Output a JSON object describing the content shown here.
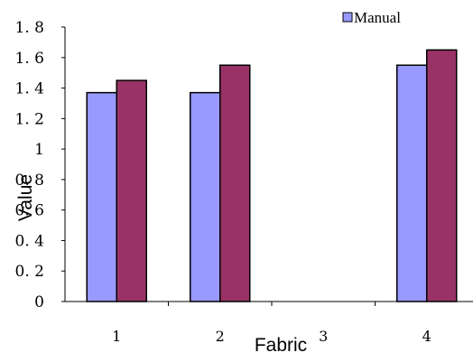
{
  "chart_data": {
    "type": "bar",
    "categories": [
      "1",
      "2",
      "3",
      "4"
    ],
    "series": [
      {
        "name": "Manual",
        "values": [
          1.37,
          1.37,
          null,
          1.55
        ],
        "color": "#9999ff"
      },
      {
        "values": [
          1.45,
          1.55,
          null,
          1.65
        ],
        "color": "#993366"
      }
    ],
    "xlabel": "Fabric",
    "ylabel": "Value",
    "ylim": [
      0,
      1.8
    ],
    "yticks": [
      "0",
      "0. 2",
      "0. 4",
      "0. 6",
      "0. 8",
      "1",
      "1. 2",
      "1. 4",
      "1. 6",
      "1. 8"
    ],
    "grid": false,
    "legend_position": "top-right"
  }
}
